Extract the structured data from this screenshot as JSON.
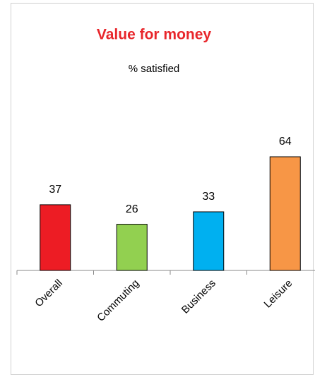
{
  "chart_data": {
    "type": "bar",
    "title": "Value for money",
    "subtitle": "% satisfied",
    "categories": [
      "Overall",
      "Commuting",
      "Business",
      "Leisure"
    ],
    "values": [
      37,
      26,
      33,
      64
    ],
    "colors": [
      "#ed1c24",
      "#92d050",
      "#00b0f0",
      "#f79646"
    ],
    "title_color": "#e8262b"
  }
}
